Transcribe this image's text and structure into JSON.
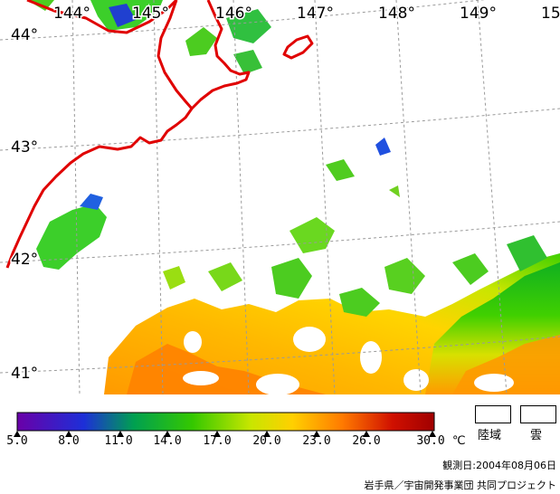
{
  "map": {
    "longitude_labels": [
      "144°",
      "145°",
      "146°",
      "147°",
      "148°",
      "149°",
      "15"
    ],
    "latitude_labels": [
      "44°",
      "43°",
      "42°",
      "41°"
    ],
    "colors": {
      "coastline": "#e00000",
      "grid": "#9a9a9a"
    }
  },
  "colorbar": {
    "ticks": [
      "5.0",
      "8.0",
      "11.0",
      "14.0",
      "17.0",
      "20.0",
      "23.0",
      "26.0",
      "30.0"
    ],
    "unit": "℃",
    "colors": [
      "#6a00a8",
      "#1d2fd8",
      "#00a050",
      "#34c800",
      "#c8e600",
      "#ffd000",
      "#ff7a00",
      "#d01000",
      "#a00000"
    ]
  },
  "key": {
    "land_label": "陸域",
    "cloud_label": "雲"
  },
  "observation_date": "観測日:2004年08月06日",
  "credit": "岩手県／宇宙開発事業団 共同プロジェクト"
}
